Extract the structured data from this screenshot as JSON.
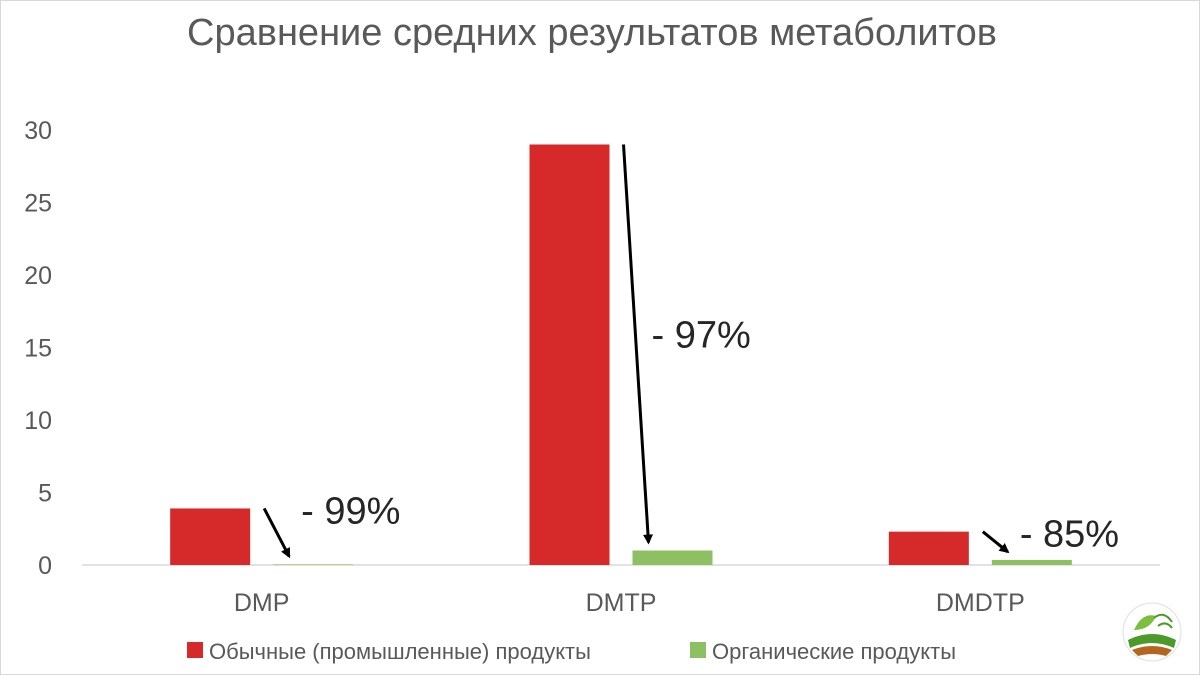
{
  "chart_data": {
    "type": "bar",
    "title": "Сравнение средних результатов метаболитов",
    "xlabel": "",
    "ylabel": "",
    "categories": [
      "DMP",
      "DMTP",
      "DMDTP"
    ],
    "ylim": [
      0,
      30
    ],
    "yticks": [
      0,
      5,
      10,
      15,
      20,
      25,
      30
    ],
    "grid": false,
    "legend_position": "bottom",
    "series": [
      {
        "name": "Обычные (промышленные) продукты",
        "color": "#d62a2a",
        "values": [
          3.9,
          29.0,
          2.3
        ]
      },
      {
        "name": "Органические продукты",
        "color": "#8cc063",
        "values": [
          0.04,
          1.0,
          0.35
        ]
      }
    ],
    "annotations": [
      {
        "category": "DMP",
        "text": "- 99%"
      },
      {
        "category": "DMTP",
        "text": "- 97%"
      },
      {
        "category": "DMDTP",
        "text": "- 85%"
      }
    ]
  },
  "logo": {
    "icon": "leaf-and-field-logo-icon"
  }
}
